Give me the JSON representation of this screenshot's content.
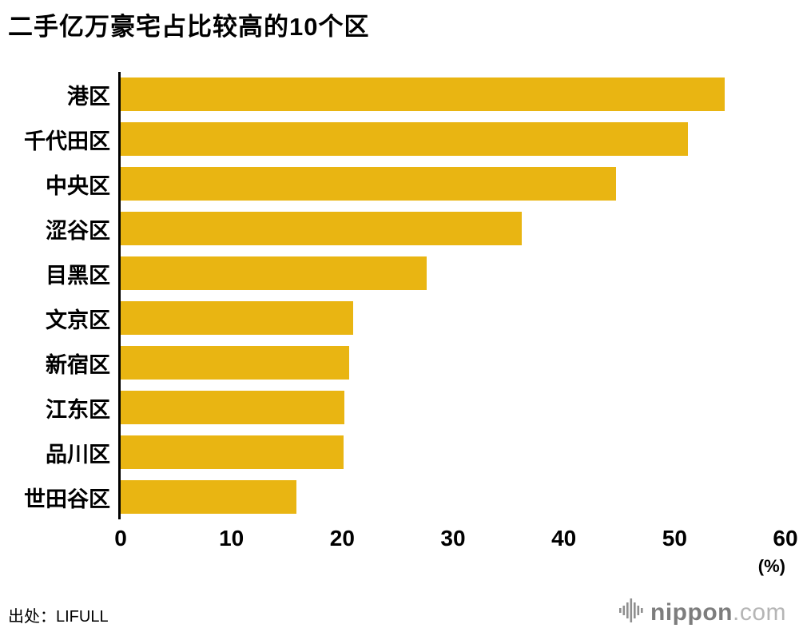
{
  "chart_data": {
    "type": "bar",
    "orientation": "horizontal",
    "title": "二手亿万豪宅占比较高的10个区",
    "categories": [
      "港区",
      "千代田区",
      "中央区",
      "涩谷区",
      "目黑区",
      "文京区",
      "新宿区",
      "江东区",
      "品川区",
      "世田谷区"
    ],
    "values": [
      54.5,
      51.2,
      44.7,
      36.2,
      27.6,
      21.0,
      20.6,
      20.2,
      20.1,
      15.9
    ],
    "xlabel": "",
    "ylabel": "",
    "xlim": [
      0,
      60
    ],
    "x_ticks": [
      0,
      10,
      20,
      30,
      40,
      50,
      60
    ],
    "unit_label": "(%)",
    "bar_color": "#e9b512",
    "axis_color": "#000000",
    "grid": false,
    "legend": false
  },
  "footer": {
    "source": "出处：LIFULL",
    "logo_main": "nippon",
    "logo_suffix": ".com",
    "logo_icon": "soundwave-bars-icon",
    "logo_color": "#7d7d7d",
    "logo_suffix_color": "#b5b5b5"
  }
}
